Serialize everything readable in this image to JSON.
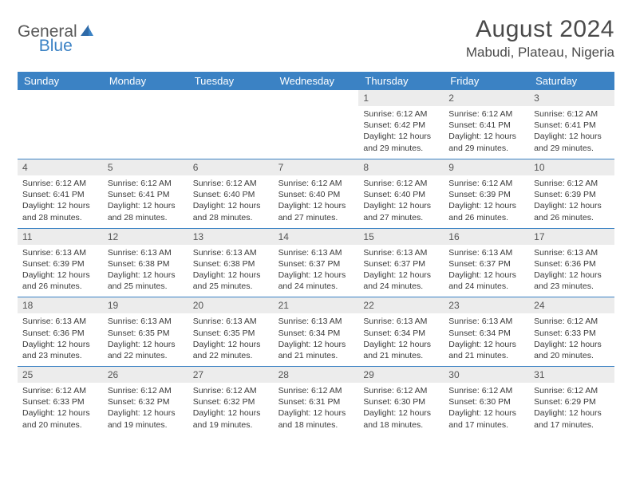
{
  "logo": {
    "gray": "General",
    "blue": "Blue"
  },
  "title": "August 2024",
  "subtitle": "Mabudi, Plateau, Nigeria",
  "colors": {
    "header_bg": "#3b82c4",
    "header_text": "#ffffff",
    "daynum_bg": "#ececec",
    "text": "#3a3a3a",
    "rule": "#3b82c4"
  },
  "weekdays": [
    "Sunday",
    "Monday",
    "Tuesday",
    "Wednesday",
    "Thursday",
    "Friday",
    "Saturday"
  ],
  "grid": [
    [
      {
        "n": "",
        "lines": []
      },
      {
        "n": "",
        "lines": []
      },
      {
        "n": "",
        "lines": []
      },
      {
        "n": "",
        "lines": []
      },
      {
        "n": "1",
        "lines": [
          "Sunrise: 6:12 AM",
          "Sunset: 6:42 PM",
          "Daylight: 12 hours",
          "and 29 minutes."
        ]
      },
      {
        "n": "2",
        "lines": [
          "Sunrise: 6:12 AM",
          "Sunset: 6:41 PM",
          "Daylight: 12 hours",
          "and 29 minutes."
        ]
      },
      {
        "n": "3",
        "lines": [
          "Sunrise: 6:12 AM",
          "Sunset: 6:41 PM",
          "Daylight: 12 hours",
          "and 29 minutes."
        ]
      }
    ],
    [
      {
        "n": "4",
        "lines": [
          "Sunrise: 6:12 AM",
          "Sunset: 6:41 PM",
          "Daylight: 12 hours",
          "and 28 minutes."
        ]
      },
      {
        "n": "5",
        "lines": [
          "Sunrise: 6:12 AM",
          "Sunset: 6:41 PM",
          "Daylight: 12 hours",
          "and 28 minutes."
        ]
      },
      {
        "n": "6",
        "lines": [
          "Sunrise: 6:12 AM",
          "Sunset: 6:40 PM",
          "Daylight: 12 hours",
          "and 28 minutes."
        ]
      },
      {
        "n": "7",
        "lines": [
          "Sunrise: 6:12 AM",
          "Sunset: 6:40 PM",
          "Daylight: 12 hours",
          "and 27 minutes."
        ]
      },
      {
        "n": "8",
        "lines": [
          "Sunrise: 6:12 AM",
          "Sunset: 6:40 PM",
          "Daylight: 12 hours",
          "and 27 minutes."
        ]
      },
      {
        "n": "9",
        "lines": [
          "Sunrise: 6:12 AM",
          "Sunset: 6:39 PM",
          "Daylight: 12 hours",
          "and 26 minutes."
        ]
      },
      {
        "n": "10",
        "lines": [
          "Sunrise: 6:12 AM",
          "Sunset: 6:39 PM",
          "Daylight: 12 hours",
          "and 26 minutes."
        ]
      }
    ],
    [
      {
        "n": "11",
        "lines": [
          "Sunrise: 6:13 AM",
          "Sunset: 6:39 PM",
          "Daylight: 12 hours",
          "and 26 minutes."
        ]
      },
      {
        "n": "12",
        "lines": [
          "Sunrise: 6:13 AM",
          "Sunset: 6:38 PM",
          "Daylight: 12 hours",
          "and 25 minutes."
        ]
      },
      {
        "n": "13",
        "lines": [
          "Sunrise: 6:13 AM",
          "Sunset: 6:38 PM",
          "Daylight: 12 hours",
          "and 25 minutes."
        ]
      },
      {
        "n": "14",
        "lines": [
          "Sunrise: 6:13 AM",
          "Sunset: 6:37 PM",
          "Daylight: 12 hours",
          "and 24 minutes."
        ]
      },
      {
        "n": "15",
        "lines": [
          "Sunrise: 6:13 AM",
          "Sunset: 6:37 PM",
          "Daylight: 12 hours",
          "and 24 minutes."
        ]
      },
      {
        "n": "16",
        "lines": [
          "Sunrise: 6:13 AM",
          "Sunset: 6:37 PM",
          "Daylight: 12 hours",
          "and 24 minutes."
        ]
      },
      {
        "n": "17",
        "lines": [
          "Sunrise: 6:13 AM",
          "Sunset: 6:36 PM",
          "Daylight: 12 hours",
          "and 23 minutes."
        ]
      }
    ],
    [
      {
        "n": "18",
        "lines": [
          "Sunrise: 6:13 AM",
          "Sunset: 6:36 PM",
          "Daylight: 12 hours",
          "and 23 minutes."
        ]
      },
      {
        "n": "19",
        "lines": [
          "Sunrise: 6:13 AM",
          "Sunset: 6:35 PM",
          "Daylight: 12 hours",
          "and 22 minutes."
        ]
      },
      {
        "n": "20",
        "lines": [
          "Sunrise: 6:13 AM",
          "Sunset: 6:35 PM",
          "Daylight: 12 hours",
          "and 22 minutes."
        ]
      },
      {
        "n": "21",
        "lines": [
          "Sunrise: 6:13 AM",
          "Sunset: 6:34 PM",
          "Daylight: 12 hours",
          "and 21 minutes."
        ]
      },
      {
        "n": "22",
        "lines": [
          "Sunrise: 6:13 AM",
          "Sunset: 6:34 PM",
          "Daylight: 12 hours",
          "and 21 minutes."
        ]
      },
      {
        "n": "23",
        "lines": [
          "Sunrise: 6:13 AM",
          "Sunset: 6:34 PM",
          "Daylight: 12 hours",
          "and 21 minutes."
        ]
      },
      {
        "n": "24",
        "lines": [
          "Sunrise: 6:12 AM",
          "Sunset: 6:33 PM",
          "Daylight: 12 hours",
          "and 20 minutes."
        ]
      }
    ],
    [
      {
        "n": "25",
        "lines": [
          "Sunrise: 6:12 AM",
          "Sunset: 6:33 PM",
          "Daylight: 12 hours",
          "and 20 minutes."
        ]
      },
      {
        "n": "26",
        "lines": [
          "Sunrise: 6:12 AM",
          "Sunset: 6:32 PM",
          "Daylight: 12 hours",
          "and 19 minutes."
        ]
      },
      {
        "n": "27",
        "lines": [
          "Sunrise: 6:12 AM",
          "Sunset: 6:32 PM",
          "Daylight: 12 hours",
          "and 19 minutes."
        ]
      },
      {
        "n": "28",
        "lines": [
          "Sunrise: 6:12 AM",
          "Sunset: 6:31 PM",
          "Daylight: 12 hours",
          "and 18 minutes."
        ]
      },
      {
        "n": "29",
        "lines": [
          "Sunrise: 6:12 AM",
          "Sunset: 6:30 PM",
          "Daylight: 12 hours",
          "and 18 minutes."
        ]
      },
      {
        "n": "30",
        "lines": [
          "Sunrise: 6:12 AM",
          "Sunset: 6:30 PM",
          "Daylight: 12 hours",
          "and 17 minutes."
        ]
      },
      {
        "n": "31",
        "lines": [
          "Sunrise: 6:12 AM",
          "Sunset: 6:29 PM",
          "Daylight: 12 hours",
          "and 17 minutes."
        ]
      }
    ]
  ]
}
